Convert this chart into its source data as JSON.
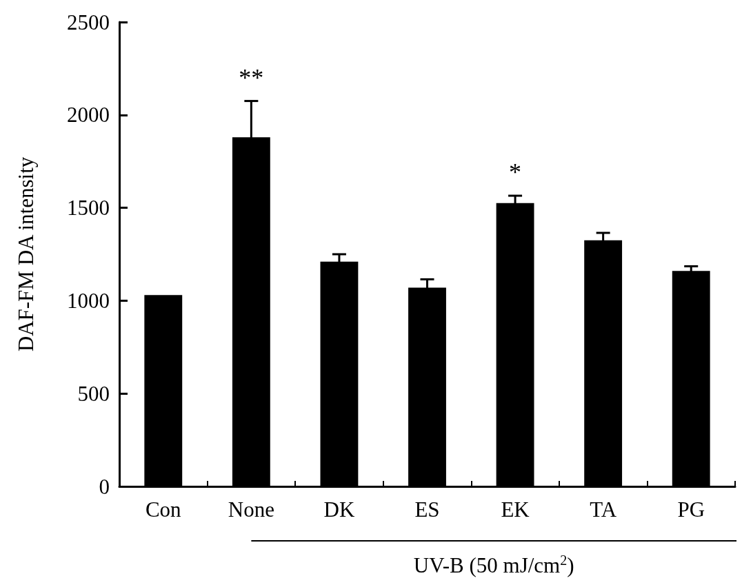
{
  "chart_data": {
    "type": "bar",
    "ylabel": "DAF-FM DA intensity",
    "xlabel": "UV-B (50 mJ/cm$^{2}$)",
    "categories": [
      "Con",
      "None",
      "DK",
      "ES",
      "EK",
      "TA",
      "PG"
    ],
    "values": [
      1030,
      1880,
      1210,
      1070,
      1525,
      1325,
      1160
    ],
    "errors": [
      null,
      195,
      40,
      45,
      40,
      40,
      25
    ],
    "value_labels": [
      null,
      "**",
      null,
      null,
      "*",
      null,
      null
    ],
    "color": "#000000",
    "ylim": [
      0,
      2500
    ],
    "yticks": [
      0,
      500,
      1000,
      1500,
      2000,
      2500
    ],
    "grid": false
  }
}
